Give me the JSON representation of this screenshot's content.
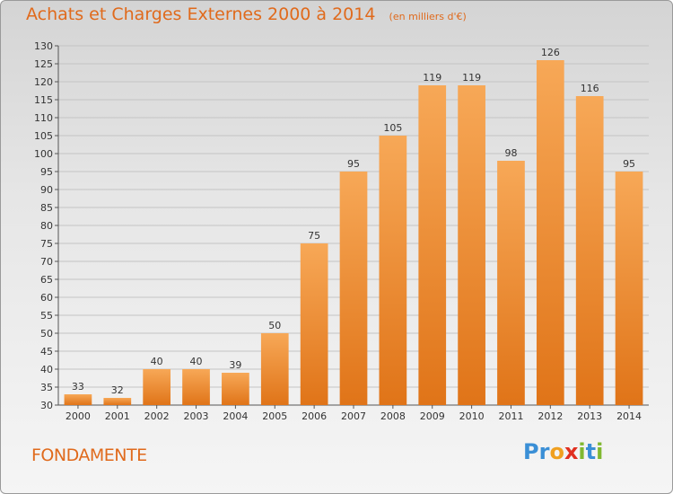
{
  "title": "Achats et Charges Externes 2000 à 2014",
  "subtitle": "(en milliers d'€)",
  "commune": "FONDAMENTE",
  "logo": {
    "letters": [
      {
        "ch": "P",
        "color": "#3a8fd6"
      },
      {
        "ch": "r",
        "color": "#3a8fd6"
      },
      {
        "ch": "o",
        "color": "#f0a020"
      },
      {
        "ch": "x",
        "color": "#e03020"
      },
      {
        "ch": "i",
        "color": "#80b830"
      },
      {
        "ch": "t",
        "color": "#3a8fd6"
      },
      {
        "ch": "i",
        "color": "#80b830"
      }
    ]
  },
  "chart_data": {
    "type": "bar",
    "categories": [
      "2000",
      "2001",
      "2002",
      "2003",
      "2004",
      "2005",
      "2006",
      "2007",
      "2008",
      "2009",
      "2010",
      "2011",
      "2012",
      "2013",
      "2014"
    ],
    "values": [
      33,
      32,
      40,
      40,
      39,
      50,
      75,
      95,
      105,
      119,
      119,
      98,
      126,
      116,
      95
    ],
    "ylim": [
      30,
      130
    ],
    "ytick_step": 5,
    "grid": true,
    "bar_color_top": "#f7a857",
    "bar_color_bottom": "#e07418",
    "title": "Achats et Charges Externes 2000 à 2014",
    "xlabel": "",
    "ylabel": ""
  }
}
